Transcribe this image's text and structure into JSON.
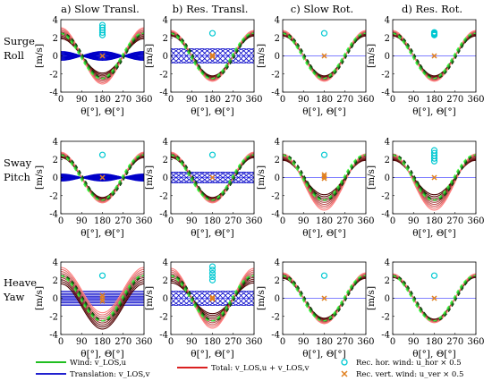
{
  "col_titles": [
    "a) Slow Transl.",
    "b) Res. Transl.",
    "c) Slow Rot.",
    "d) Res. Rot."
  ],
  "row_labels": [
    [
      "Surge",
      "Roll"
    ],
    [
      "Sway",
      "Pitch"
    ],
    [
      "Heave",
      "Yaw"
    ]
  ],
  "colors": {
    "wind": "#00b400",
    "translation": "#0000c8",
    "total": "#d40000",
    "rec_hor": "#00c8d2",
    "rec_vert": "#e08020",
    "zero_line": "#8080ff"
  },
  "legend": {
    "wind": "Wind: v_LOS,u",
    "translation": "Translation: v_LOS,v",
    "total": "Total: v_LOS,u + v_LOS,v",
    "rec_hor": "Rec. hor. wind: u_hor × 0.5",
    "rec_vert": "Rec. vert. wind: u_ver × 0.5"
  },
  "chart_data": {
    "type": "line",
    "layout": "3x4 grid of subplots",
    "x_label": "θ[°], Θ[°]",
    "y_label": "[m/s]",
    "x_ticks": [
      0,
      90,
      180,
      270,
      360
    ],
    "y_ticks": [
      -4,
      -2,
      0,
      2,
      4
    ],
    "xlim": [
      0,
      360
    ],
    "ylim": [
      -4,
      4
    ],
    "wind_model": "v = 2.5*cos(theta) for each beam",
    "panels": [
      {
        "row": 0,
        "col": 0,
        "wind_amp": 2.5,
        "total_spread": [
          -0.6,
          0.6
        ],
        "trans_amp": 0.5,
        "trans_kind": "slow",
        "rec_hor": {
          "x": 180,
          "y": [
            2.3,
            3.4
          ]
        },
        "rec_vert": {
          "x": 180,
          "y": [
            0.0,
            0.0
          ]
        }
      },
      {
        "row": 0,
        "col": 1,
        "wind_amp": 2.5,
        "total_spread": [
          -0.3,
          0.3
        ],
        "trans_amp": 0.8,
        "trans_kind": "res",
        "rec_hor": {
          "x": 180,
          "y": [
            2.5,
            2.5
          ]
        },
        "rec_vert": {
          "x": 180,
          "y": [
            -0.1,
            0.1
          ]
        }
      },
      {
        "row": 0,
        "col": 2,
        "wind_amp": 2.5,
        "total_spread": [
          -0.3,
          0.3
        ],
        "trans_amp": 0,
        "trans_kind": "none",
        "rec_hor": {
          "x": 180,
          "y": [
            2.5,
            2.5
          ]
        },
        "rec_vert": {
          "x": 180,
          "y": [
            0.0,
            0.0
          ]
        }
      },
      {
        "row": 0,
        "col": 3,
        "wind_amp": 2.5,
        "total_spread": [
          -0.3,
          0.3
        ],
        "trans_amp": 0,
        "trans_kind": "none",
        "rec_hor": {
          "x": 180,
          "y": [
            2.3,
            2.6
          ]
        },
        "rec_vert": {
          "x": 180,
          "y": [
            0.0,
            0.0
          ]
        }
      },
      {
        "row": 1,
        "col": 0,
        "wind_amp": 2.5,
        "total_spread": [
          -0.3,
          0.3
        ],
        "trans_amp": 0.4,
        "trans_kind": "slow",
        "rec_hor": {
          "x": 180,
          "y": [
            2.5,
            2.5
          ]
        },
        "rec_vert": {
          "x": 180,
          "y": [
            0.0,
            0.0
          ]
        }
      },
      {
        "row": 1,
        "col": 1,
        "wind_amp": 2.5,
        "total_spread": [
          -0.3,
          0.3
        ],
        "trans_amp": 0.6,
        "trans_kind": "res",
        "rec_hor": {
          "x": 180,
          "y": [
            2.5,
            2.5
          ]
        },
        "rec_vert": {
          "x": 180,
          "y": [
            0.0,
            0.0
          ]
        }
      },
      {
        "row": 1,
        "col": 2,
        "wind_amp": 2.5,
        "total_spread": [
          -0.6,
          0.6
        ],
        "offset": 0.5,
        "trans_amp": 0,
        "trans_kind": "none",
        "rec_hor": {
          "x": 180,
          "y": [
            2.5,
            2.5
          ]
        },
        "rec_vert": {
          "x": 180,
          "y": [
            -0.1,
            0.3
          ]
        }
      },
      {
        "row": 1,
        "col": 3,
        "wind_amp": 2.5,
        "total_spread": [
          -0.6,
          0.6
        ],
        "offset": 0.5,
        "trans_amp": 0,
        "trans_kind": "none",
        "rec_hor": {
          "x": 180,
          "y": [
            1.8,
            3.0
          ]
        },
        "rec_vert": {
          "x": 180,
          "y": [
            0.0,
            0.0
          ]
        }
      },
      {
        "row": 2,
        "col": 0,
        "wind_amp": 2.5,
        "total_spread": [
          -0.9,
          0.9
        ],
        "trans_amp": 0.8,
        "trans_kind": "heave",
        "rec_hor": {
          "x": 180,
          "y": [
            2.5,
            2.5
          ]
        },
        "rec_vert": {
          "x": 180,
          "y": [
            -0.3,
            0.3
          ]
        }
      },
      {
        "row": 2,
        "col": 1,
        "wind_amp": 2.5,
        "total_spread": [
          -0.8,
          0.8
        ],
        "trans_amp": 0.8,
        "trans_kind": "res",
        "rec_hor": {
          "x": 180,
          "y": [
            2.0,
            3.5
          ]
        },
        "rec_vert": {
          "x": 180,
          "y": [
            -0.1,
            0.1
          ]
        }
      },
      {
        "row": 2,
        "col": 2,
        "wind_amp": 2.5,
        "total_spread": [
          -0.3,
          0.3
        ],
        "trans_amp": 0,
        "trans_kind": "none",
        "rec_hor": {
          "x": 180,
          "y": [
            2.5,
            2.5
          ]
        },
        "rec_vert": {
          "x": 180,
          "y": [
            0.0,
            0.0
          ]
        }
      },
      {
        "row": 2,
        "col": 3,
        "wind_amp": 2.5,
        "total_spread": [
          -0.2,
          0.2
        ],
        "trans_amp": 0,
        "trans_kind": "none",
        "rec_hor": {
          "x": 180,
          "y": [
            2.5,
            2.5
          ]
        },
        "rec_vert": {
          "x": 180,
          "y": [
            0.0,
            0.0
          ]
        }
      }
    ]
  }
}
